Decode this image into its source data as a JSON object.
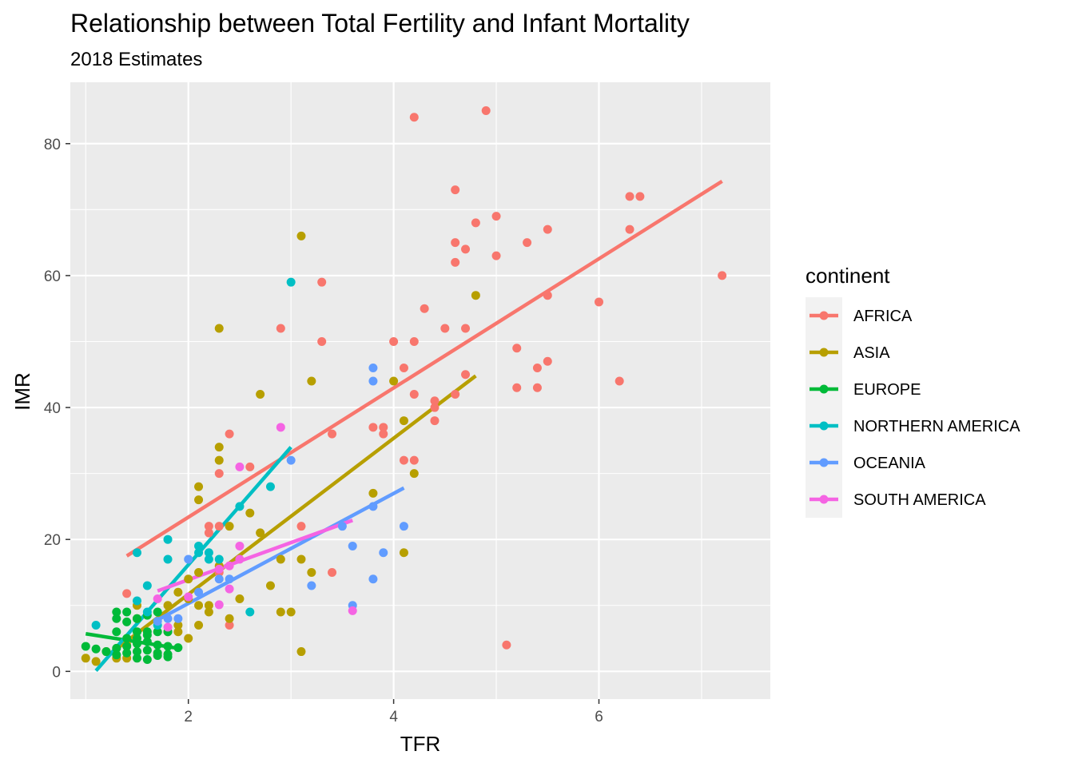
{
  "chart_data": {
    "type": "scatter",
    "title": "Relationship between Total Fertility and Infant Mortality",
    "subtitle": "2018 Estimates",
    "xlabel": "TFR",
    "ylabel": "IMR",
    "xlim": [
      0.85,
      7.67
    ],
    "ylim": [
      -4.2,
      89.3
    ],
    "x_ticks": [
      2,
      4,
      6
    ],
    "y_ticks": [
      0,
      20,
      40,
      60,
      80
    ],
    "x_tick_labels": [
      "2",
      "4",
      "6"
    ],
    "y_tick_labels": [
      "0",
      "20",
      "40",
      "60",
      "80"
    ],
    "grid": true,
    "legend_title": "continent",
    "legend_position": "right",
    "series": [
      {
        "name": "AFRICA",
        "color": "#F8766D",
        "trend": [
          [
            1.4,
            17.5
          ],
          [
            7.2,
            74.3
          ]
        ],
        "points": [
          [
            4.9,
            85
          ],
          [
            4.2,
            84
          ],
          [
            4.6,
            73
          ],
          [
            6.3,
            72
          ],
          [
            6.4,
            72
          ],
          [
            5.0,
            69
          ],
          [
            4.8,
            68
          ],
          [
            5.3,
            65
          ],
          [
            4.6,
            65
          ],
          [
            5.5,
            67
          ],
          [
            6.3,
            67
          ],
          [
            4.7,
            64
          ],
          [
            5.0,
            63
          ],
          [
            4.6,
            62
          ],
          [
            7.2,
            60
          ],
          [
            3.3,
            59
          ],
          [
            5.5,
            57
          ],
          [
            6.0,
            56
          ],
          [
            4.3,
            55
          ],
          [
            2.9,
            52
          ],
          [
            4.5,
            52
          ],
          [
            4.7,
            52
          ],
          [
            3.3,
            50
          ],
          [
            4.0,
            50
          ],
          [
            4.2,
            50
          ],
          [
            5.2,
            49
          ],
          [
            5.5,
            47
          ],
          [
            4.1,
            46
          ],
          [
            5.4,
            46
          ],
          [
            4.7,
            45
          ],
          [
            6.2,
            44
          ],
          [
            5.2,
            43
          ],
          [
            5.4,
            43
          ],
          [
            4.2,
            42
          ],
          [
            4.6,
            42
          ],
          [
            4.4,
            41
          ],
          [
            4.4,
            40
          ],
          [
            4.4,
            38
          ],
          [
            3.8,
            37
          ],
          [
            3.9,
            37
          ],
          [
            3.9,
            36
          ],
          [
            3.4,
            36
          ],
          [
            2.4,
            36
          ],
          [
            4.1,
            32
          ],
          [
            4.2,
            32
          ],
          [
            2.6,
            31
          ],
          [
            2.3,
            30
          ],
          [
            2.2,
            22
          ],
          [
            2.3,
            22
          ],
          [
            3.1,
            22
          ],
          [
            2.2,
            21
          ],
          [
            3.4,
            15
          ],
          [
            2.3,
            15
          ],
          [
            1.4,
            11.8
          ],
          [
            2.4,
            7
          ],
          [
            5.1,
            4
          ]
        ]
      },
      {
        "name": "ASIA",
        "color": "#B79F00",
        "trend": [
          [
            1.3,
            3.4
          ],
          [
            4.8,
            44.8
          ]
        ],
        "points": [
          [
            3.1,
            66
          ],
          [
            4.8,
            57
          ],
          [
            2.3,
            52
          ],
          [
            3.2,
            44
          ],
          [
            4.0,
            44
          ],
          [
            2.7,
            42
          ],
          [
            4.1,
            38
          ],
          [
            2.3,
            34
          ],
          [
            2.3,
            32
          ],
          [
            4.2,
            30
          ],
          [
            2.1,
            28
          ],
          [
            3.8,
            27
          ],
          [
            2.1,
            26
          ],
          [
            2.6,
            24
          ],
          [
            2.4,
            22
          ],
          [
            2.7,
            21
          ],
          [
            4.1,
            18
          ],
          [
            2.9,
            17
          ],
          [
            3.1,
            17
          ],
          [
            2.3,
            16
          ],
          [
            2.1,
            15
          ],
          [
            3.2,
            15
          ],
          [
            2.0,
            14
          ],
          [
            2.8,
            13
          ],
          [
            1.9,
            12
          ],
          [
            2.0,
            11
          ],
          [
            2.5,
            11
          ],
          [
            2.2,
            10
          ],
          [
            1.5,
            10
          ],
          [
            1.8,
            10
          ],
          [
            2.1,
            10
          ],
          [
            2.9,
            9
          ],
          [
            3.0,
            9
          ],
          [
            2.2,
            9
          ],
          [
            1.5,
            8
          ],
          [
            2.4,
            8
          ],
          [
            1.9,
            7
          ],
          [
            2.1,
            7
          ],
          [
            1.8,
            6
          ],
          [
            1.9,
            6
          ],
          [
            2.0,
            5
          ],
          [
            3.1,
            3
          ],
          [
            1.4,
            4
          ],
          [
            1.2,
            3
          ],
          [
            1.0,
            2
          ],
          [
            1.1,
            1.5
          ],
          [
            1.3,
            2
          ],
          [
            1.4,
            2
          ]
        ]
      },
      {
        "name": "EUROPE",
        "color": "#00BA38",
        "trend": [
          [
            1.0,
            5.7
          ],
          [
            1.9,
            3.5
          ]
        ],
        "points": [
          [
            1.3,
            9
          ],
          [
            1.4,
            9
          ],
          [
            1.3,
            8
          ],
          [
            1.4,
            7.5
          ],
          [
            1.5,
            8
          ],
          [
            1.6,
            8.5
          ],
          [
            1.7,
            9
          ],
          [
            1.3,
            6
          ],
          [
            1.5,
            6
          ],
          [
            1.6,
            6
          ],
          [
            1.7,
            6
          ],
          [
            1.8,
            6
          ],
          [
            1.0,
            3.8
          ],
          [
            1.1,
            3.4
          ],
          [
            1.2,
            3.0
          ],
          [
            1.3,
            3.5
          ],
          [
            1.4,
            3.8
          ],
          [
            1.5,
            4.2
          ],
          [
            1.6,
            4.5
          ],
          [
            1.7,
            4.0
          ],
          [
            1.8,
            3.8
          ],
          [
            1.9,
            3.6
          ],
          [
            1.3,
            2.5
          ],
          [
            1.4,
            2.8
          ],
          [
            1.5,
            3.0
          ],
          [
            1.6,
            3.2
          ],
          [
            1.7,
            2.8
          ],
          [
            1.8,
            2.6
          ],
          [
            1.5,
            2.0
          ],
          [
            1.6,
            1.8
          ],
          [
            1.7,
            2.4
          ],
          [
            1.8,
            2.2
          ],
          [
            1.6,
            5.5
          ],
          [
            1.5,
            5.0
          ],
          [
            1.4,
            5.0
          ]
        ]
      },
      {
        "name": "NORTHERN AMERICA",
        "color": "#00BFC4",
        "trend": [
          [
            1.1,
            0.1
          ],
          [
            3.0,
            34.0
          ]
        ],
        "points": [
          [
            3.0,
            59
          ],
          [
            2.8,
            28
          ],
          [
            2.5,
            25
          ],
          [
            1.8,
            20
          ],
          [
            2.1,
            19
          ],
          [
            2.2,
            18
          ],
          [
            1.5,
            18
          ],
          [
            1.8,
            17
          ],
          [
            2.2,
            17
          ],
          [
            2.3,
            17
          ],
          [
            1.6,
            13
          ],
          [
            2.6,
            9
          ],
          [
            1.1,
            7
          ],
          [
            1.5,
            10.7
          ],
          [
            1.6,
            9
          ],
          [
            1.7,
            7
          ],
          [
            2.1,
            18
          ]
        ]
      },
      {
        "name": "OCEANIA",
        "color": "#619CFF",
        "trend": [
          [
            1.7,
            7.8
          ],
          [
            4.1,
            27.8
          ]
        ],
        "points": [
          [
            3.8,
            46
          ],
          [
            3.8,
            44
          ],
          [
            3.0,
            32
          ],
          [
            3.8,
            25
          ],
          [
            4.1,
            22
          ],
          [
            3.5,
            22
          ],
          [
            3.6,
            19
          ],
          [
            3.9,
            18
          ],
          [
            2.0,
            17
          ],
          [
            3.8,
            14
          ],
          [
            2.3,
            14
          ],
          [
            2.4,
            14
          ],
          [
            3.2,
            13
          ],
          [
            2.1,
            12
          ],
          [
            1.8,
            8
          ],
          [
            1.9,
            8
          ],
          [
            1.7,
            7.6
          ],
          [
            3.6,
            10
          ]
        ]
      },
      {
        "name": "SOUTH AMERICA",
        "color": "#F564E3",
        "trend": [
          [
            1.7,
            12.2
          ],
          [
            3.6,
            22.9
          ]
        ],
        "points": [
          [
            2.9,
            37
          ],
          [
            2.5,
            31
          ],
          [
            2.5,
            19
          ],
          [
            2.5,
            17
          ],
          [
            2.4,
            16
          ],
          [
            2.3,
            15.5
          ],
          [
            2.4,
            12.5
          ],
          [
            1.7,
            11
          ],
          [
            2.0,
            11.3
          ],
          [
            2.3,
            10.1
          ],
          [
            1.8,
            6.7
          ],
          [
            3.6,
            9.2
          ]
        ]
      }
    ]
  }
}
